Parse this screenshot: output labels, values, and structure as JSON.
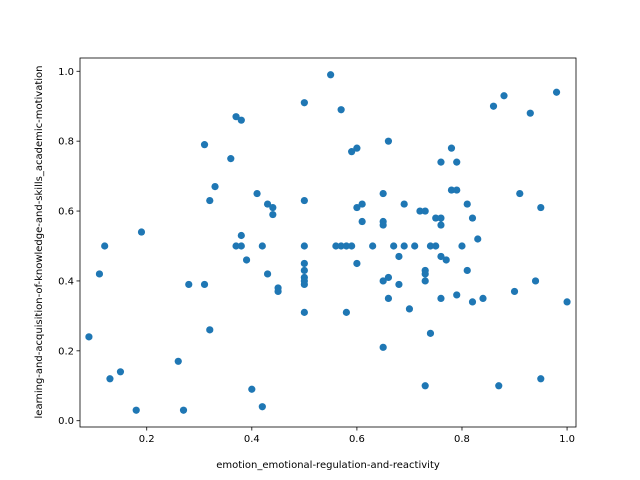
{
  "chart_data": {
    "type": "scatter",
    "title": "",
    "xlabel": "emotion_emotional-regulation-and-reactivity",
    "ylabel": "learning-and-acquisition-of-knowledge-and-skills_academic-motivation",
    "xlim": [
      0.073,
      1.017
    ],
    "ylim": [
      -0.018,
      1.038
    ],
    "xticks": [
      "0.2",
      "0.4",
      "0.6",
      "0.8",
      "1.0"
    ],
    "yticks": [
      "0.0",
      "0.2",
      "0.4",
      "0.6",
      "0.8",
      "1.0"
    ],
    "grid": false,
    "legend": "none",
    "color": "#1f77b4",
    "points": [
      [
        0.09,
        0.24
      ],
      [
        0.11,
        0.42
      ],
      [
        0.12,
        0.5
      ],
      [
        0.13,
        0.12
      ],
      [
        0.15,
        0.14
      ],
      [
        0.18,
        0.03
      ],
      [
        0.19,
        0.54
      ],
      [
        0.26,
        0.17
      ],
      [
        0.27,
        0.03
      ],
      [
        0.28,
        0.39
      ],
      [
        0.31,
        0.39
      ],
      [
        0.31,
        0.79
      ],
      [
        0.32,
        0.63
      ],
      [
        0.32,
        0.26
      ],
      [
        0.33,
        0.67
      ],
      [
        0.36,
        0.75
      ],
      [
        0.37,
        0.87
      ],
      [
        0.37,
        0.5
      ],
      [
        0.38,
        0.86
      ],
      [
        0.38,
        0.53
      ],
      [
        0.38,
        0.5
      ],
      [
        0.39,
        0.46
      ],
      [
        0.4,
        0.09
      ],
      [
        0.41,
        0.65
      ],
      [
        0.42,
        0.04
      ],
      [
        0.42,
        0.5
      ],
      [
        0.43,
        0.62
      ],
      [
        0.43,
        0.42
      ],
      [
        0.44,
        0.61
      ],
      [
        0.44,
        0.59
      ],
      [
        0.45,
        0.38
      ],
      [
        0.45,
        0.37
      ],
      [
        0.5,
        0.91
      ],
      [
        0.5,
        0.63
      ],
      [
        0.5,
        0.5
      ],
      [
        0.5,
        0.45
      ],
      [
        0.5,
        0.43
      ],
      [
        0.5,
        0.41
      ],
      [
        0.5,
        0.4
      ],
      [
        0.5,
        0.39
      ],
      [
        0.5,
        0.31
      ],
      [
        0.55,
        0.99
      ],
      [
        0.56,
        0.5
      ],
      [
        0.57,
        0.89
      ],
      [
        0.57,
        0.5
      ],
      [
        0.58,
        0.5
      ],
      [
        0.58,
        0.31
      ],
      [
        0.59,
        0.77
      ],
      [
        0.59,
        0.5
      ],
      [
        0.6,
        0.78
      ],
      [
        0.6,
        0.61
      ],
      [
        0.6,
        0.45
      ],
      [
        0.61,
        0.62
      ],
      [
        0.61,
        0.57
      ],
      [
        0.63,
        0.5
      ],
      [
        0.65,
        0.65
      ],
      [
        0.65,
        0.57
      ],
      [
        0.65,
        0.56
      ],
      [
        0.65,
        0.4
      ],
      [
        0.65,
        0.21
      ],
      [
        0.66,
        0.8
      ],
      [
        0.66,
        0.41
      ],
      [
        0.66,
        0.35
      ],
      [
        0.67,
        0.5
      ],
      [
        0.68,
        0.39
      ],
      [
        0.68,
        0.47
      ],
      [
        0.69,
        0.62
      ],
      [
        0.69,
        0.5
      ],
      [
        0.7,
        0.32
      ],
      [
        0.71,
        0.5
      ],
      [
        0.72,
        0.6
      ],
      [
        0.73,
        0.6
      ],
      [
        0.73,
        0.43
      ],
      [
        0.73,
        0.42
      ],
      [
        0.73,
        0.4
      ],
      [
        0.73,
        0.1
      ],
      [
        0.74,
        0.5
      ],
      [
        0.74,
        0.25
      ],
      [
        0.75,
        0.58
      ],
      [
        0.75,
        0.5
      ],
      [
        0.76,
        0.74
      ],
      [
        0.76,
        0.58
      ],
      [
        0.76,
        0.56
      ],
      [
        0.76,
        0.47
      ],
      [
        0.76,
        0.35
      ],
      [
        0.77,
        0.46
      ],
      [
        0.78,
        0.78
      ],
      [
        0.78,
        0.66
      ],
      [
        0.79,
        0.74
      ],
      [
        0.79,
        0.66
      ],
      [
        0.79,
        0.36
      ],
      [
        0.8,
        0.5
      ],
      [
        0.81,
        0.62
      ],
      [
        0.81,
        0.43
      ],
      [
        0.82,
        0.58
      ],
      [
        0.82,
        0.34
      ],
      [
        0.83,
        0.52
      ],
      [
        0.84,
        0.35
      ],
      [
        0.86,
        0.9
      ],
      [
        0.87,
        0.1
      ],
      [
        0.88,
        0.93
      ],
      [
        0.9,
        0.37
      ],
      [
        0.91,
        0.65
      ],
      [
        0.93,
        0.88
      ],
      [
        0.94,
        0.4
      ],
      [
        0.95,
        0.61
      ],
      [
        0.95,
        0.12
      ],
      [
        0.98,
        0.94
      ],
      [
        1.0,
        0.34
      ]
    ]
  }
}
